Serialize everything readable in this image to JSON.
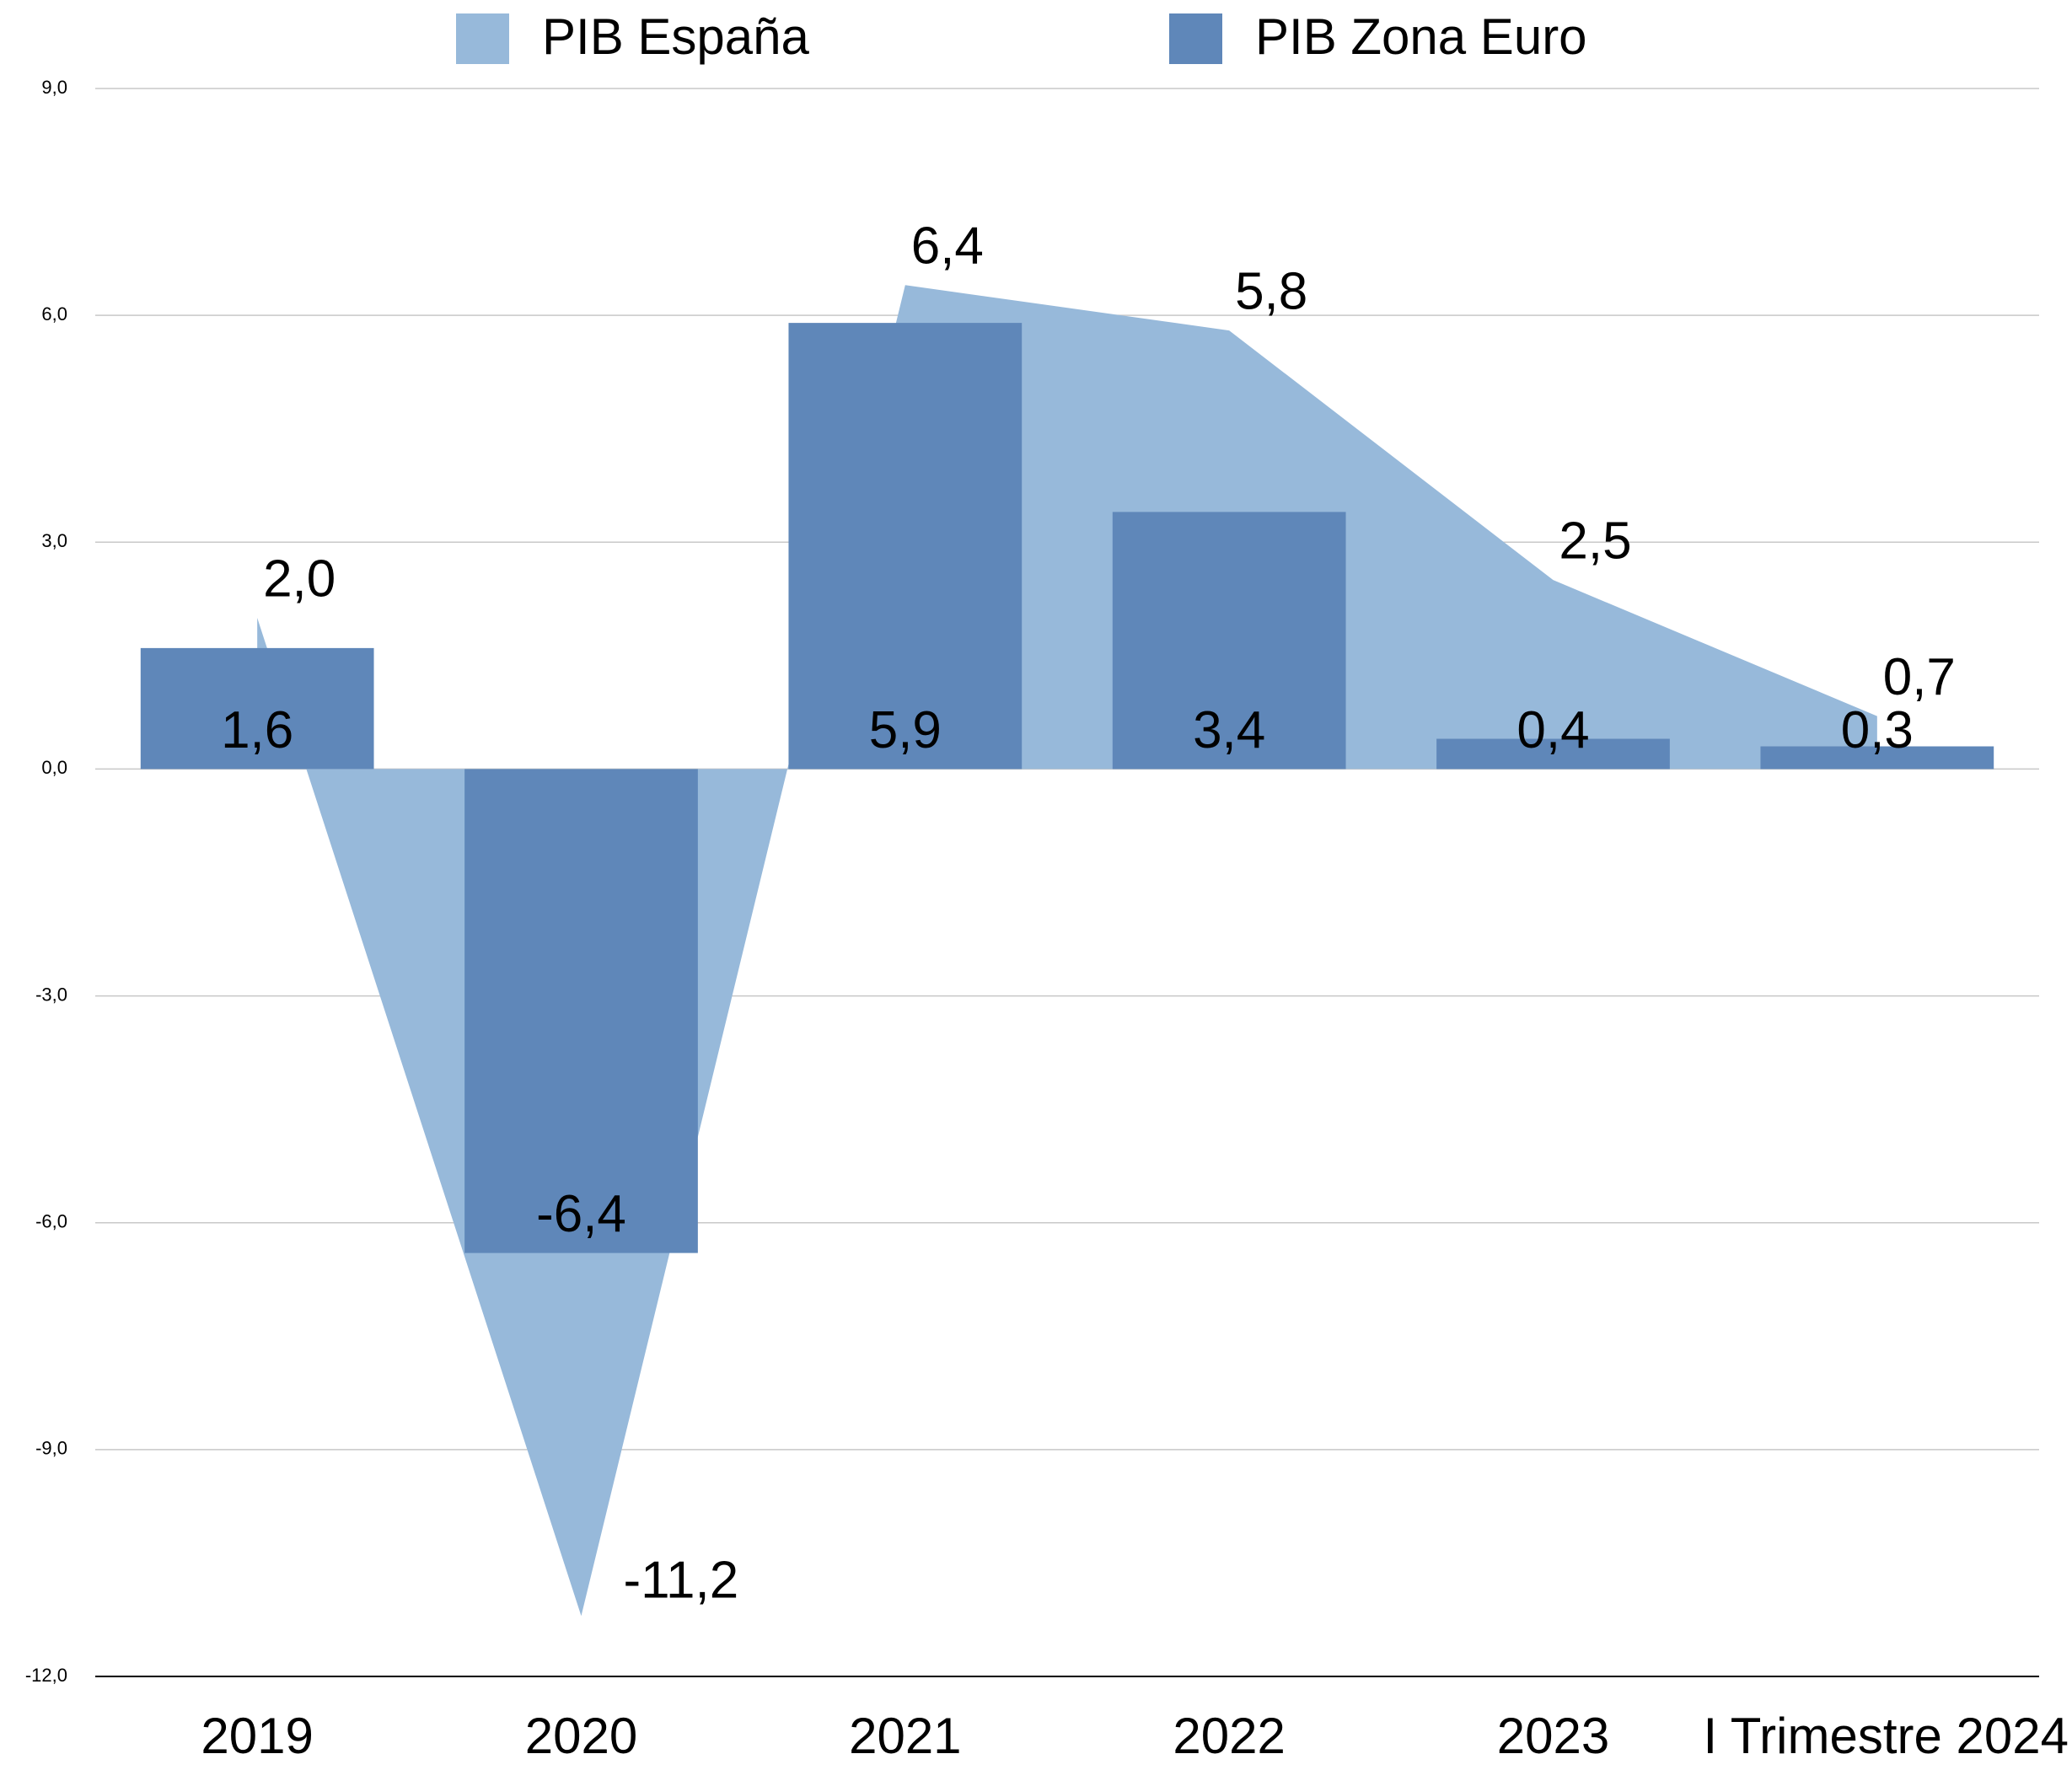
{
  "chart_data": {
    "type": "bar_area",
    "categories": [
      "2019",
      "2020",
      "2021",
      "2022",
      "2023",
      "I Trimestre 2024"
    ],
    "series": [
      {
        "name": "PIB España",
        "color": "#97b9da",
        "kind": "area",
        "values": [
          2.0,
          -11.2,
          6.4,
          5.8,
          2.5,
          0.7
        ],
        "value_labels": [
          "2,0",
          "-11,2",
          "6,4",
          "5,8",
          "2,5",
          "0,7"
        ]
      },
      {
        "name": "PIB Zona Euro",
        "color": "#5f87b9",
        "kind": "bar",
        "values": [
          1.6,
          -6.4,
          5.9,
          3.4,
          0.4,
          0.3
        ],
        "value_labels": [
          "1,6",
          "-6,4",
          "5,9",
          "3,4",
          "0,4",
          "0,3"
        ]
      }
    ],
    "ylim": [
      -12,
      9
    ],
    "yticks": [
      {
        "value": 9,
        "label": "9,0"
      },
      {
        "value": 6,
        "label": "6,0"
      },
      {
        "value": 3,
        "label": "3,0"
      },
      {
        "value": 0,
        "label": "0,0"
      },
      {
        "value": -3,
        "label": "-3,0"
      },
      {
        "value": -6,
        "label": "-6,0"
      },
      {
        "value": -9,
        "label": "-9,0"
      },
      {
        "value": -12,
        "label": "-12,0"
      }
    ],
    "grid": true,
    "legend": "top"
  }
}
